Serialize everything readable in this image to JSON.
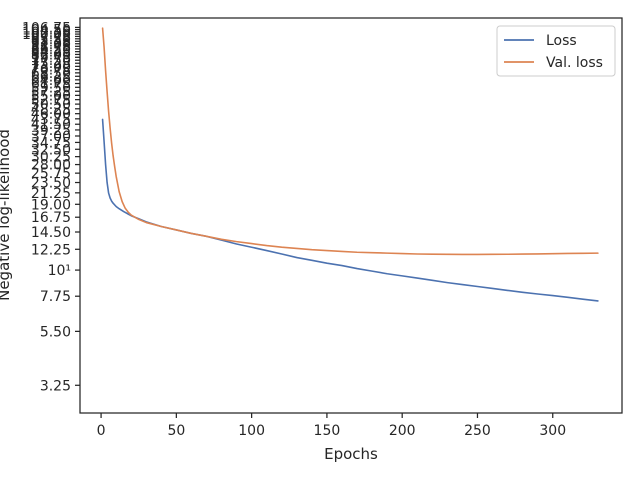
{
  "chart_data": {
    "type": "line",
    "title": "",
    "xlabel": "Epochs",
    "ylabel": "Negative log-likelihood",
    "xlim": [
      -14,
      346
    ],
    "ylim": [
      2.48,
      117
    ],
    "y_scale": "log",
    "x_ticks": [
      0,
      50,
      100,
      150,
      200,
      250,
      300
    ],
    "x_tick_labels": [
      "0",
      "50",
      "100",
      "150",
      "200",
      "250",
      "300"
    ],
    "y_ticks": [
      3.25,
      5.5,
      7.75,
      10,
      12.25,
      14.5,
      16.75,
      19.0,
      21.25,
      23.5,
      25.75,
      28.0,
      30.25,
      32.5,
      34.75,
      37.0,
      39.25,
      41.5,
      43.75,
      46.0,
      48.25,
      50.5,
      52.75,
      55.0,
      57.25,
      59.5,
      61.75,
      64.0,
      66.25,
      68.5,
      70.75,
      73.0,
      75.25,
      77.5,
      79.75,
      82.0,
      84.25,
      86.5,
      88.75,
      91.0,
      93.25,
      95.5,
      97.75,
      100.0,
      102.25,
      104.5,
      106.75
    ],
    "y_tick_labels": [
      "3.25",
      "5.50",
      "7.75",
      "10¹",
      "12.25",
      "14.50",
      "16.75",
      "19.00",
      "21.25",
      "23.50",
      "25.75",
      "28.00",
      "30.25",
      "32.50",
      "34.75",
      "37.00",
      "39.25",
      "41.50",
      "43.75",
      "46.00",
      "48.25",
      "50.50",
      "52.75",
      "55.00",
      "57.25",
      "59.50",
      "61.75",
      "64.00",
      "66.25",
      "68.50",
      "70.75",
      "73.00",
      "75.25",
      "77.50",
      "79.75",
      "82.00",
      "84.25",
      "86.50",
      "88.75",
      "91.00",
      "93.25",
      "95.50",
      "97.75",
      "100.00",
      "102.25",
      "104.50",
      "106.75"
    ],
    "grid": false,
    "legend_position": "top-right",
    "series": [
      {
        "name": "Loss",
        "color": "#4c72b0",
        "x": [
          1,
          2,
          3,
          4,
          5,
          6,
          7,
          8,
          10,
          12,
          15,
          20,
          25,
          30,
          40,
          50,
          60,
          70,
          80,
          90,
          100,
          110,
          120,
          130,
          140,
          150,
          160,
          170,
          180,
          190,
          200,
          210,
          220,
          230,
          240,
          250,
          260,
          270,
          280,
          290,
          300,
          310,
          320,
          330
        ],
        "y": [
          43.5,
          35.0,
          28.0,
          23.5,
          21.2,
          20.2,
          19.6,
          19.2,
          18.6,
          18.2,
          17.7,
          17.0,
          16.5,
          16.0,
          15.3,
          14.8,
          14.3,
          13.9,
          13.4,
          12.9,
          12.5,
          12.1,
          11.7,
          11.3,
          11.0,
          10.7,
          10.45,
          10.15,
          9.9,
          9.65,
          9.45,
          9.25,
          9.05,
          8.85,
          8.68,
          8.52,
          8.36,
          8.2,
          8.05,
          7.92,
          7.8,
          7.67,
          7.53,
          7.4
        ]
      },
      {
        "name": "Val. loss",
        "color": "#dd8452",
        "x": [
          1,
          2,
          3,
          4,
          5,
          6,
          7,
          8,
          9,
          10,
          12,
          14,
          16,
          18,
          20,
          25,
          30,
          40,
          50,
          60,
          70,
          80,
          90,
          100,
          110,
          120,
          130,
          140,
          150,
          160,
          170,
          180,
          190,
          200,
          210,
          220,
          230,
          240,
          250,
          260,
          270,
          280,
          290,
          300,
          310,
          320,
          330
        ],
        "y": [
          106.0,
          88.0,
          70.0,
          57.0,
          47.0,
          40.0,
          34.5,
          30.5,
          27.5,
          25.0,
          21.5,
          19.5,
          18.3,
          17.6,
          17.1,
          16.4,
          15.9,
          15.3,
          14.8,
          14.3,
          13.9,
          13.5,
          13.2,
          12.95,
          12.7,
          12.5,
          12.35,
          12.2,
          12.1,
          12.0,
          11.9,
          11.85,
          11.8,
          11.75,
          11.7,
          11.68,
          11.66,
          11.65,
          11.65,
          11.66,
          11.67,
          11.69,
          11.71,
          11.74,
          11.76,
          11.78,
          11.8
        ]
      }
    ]
  }
}
